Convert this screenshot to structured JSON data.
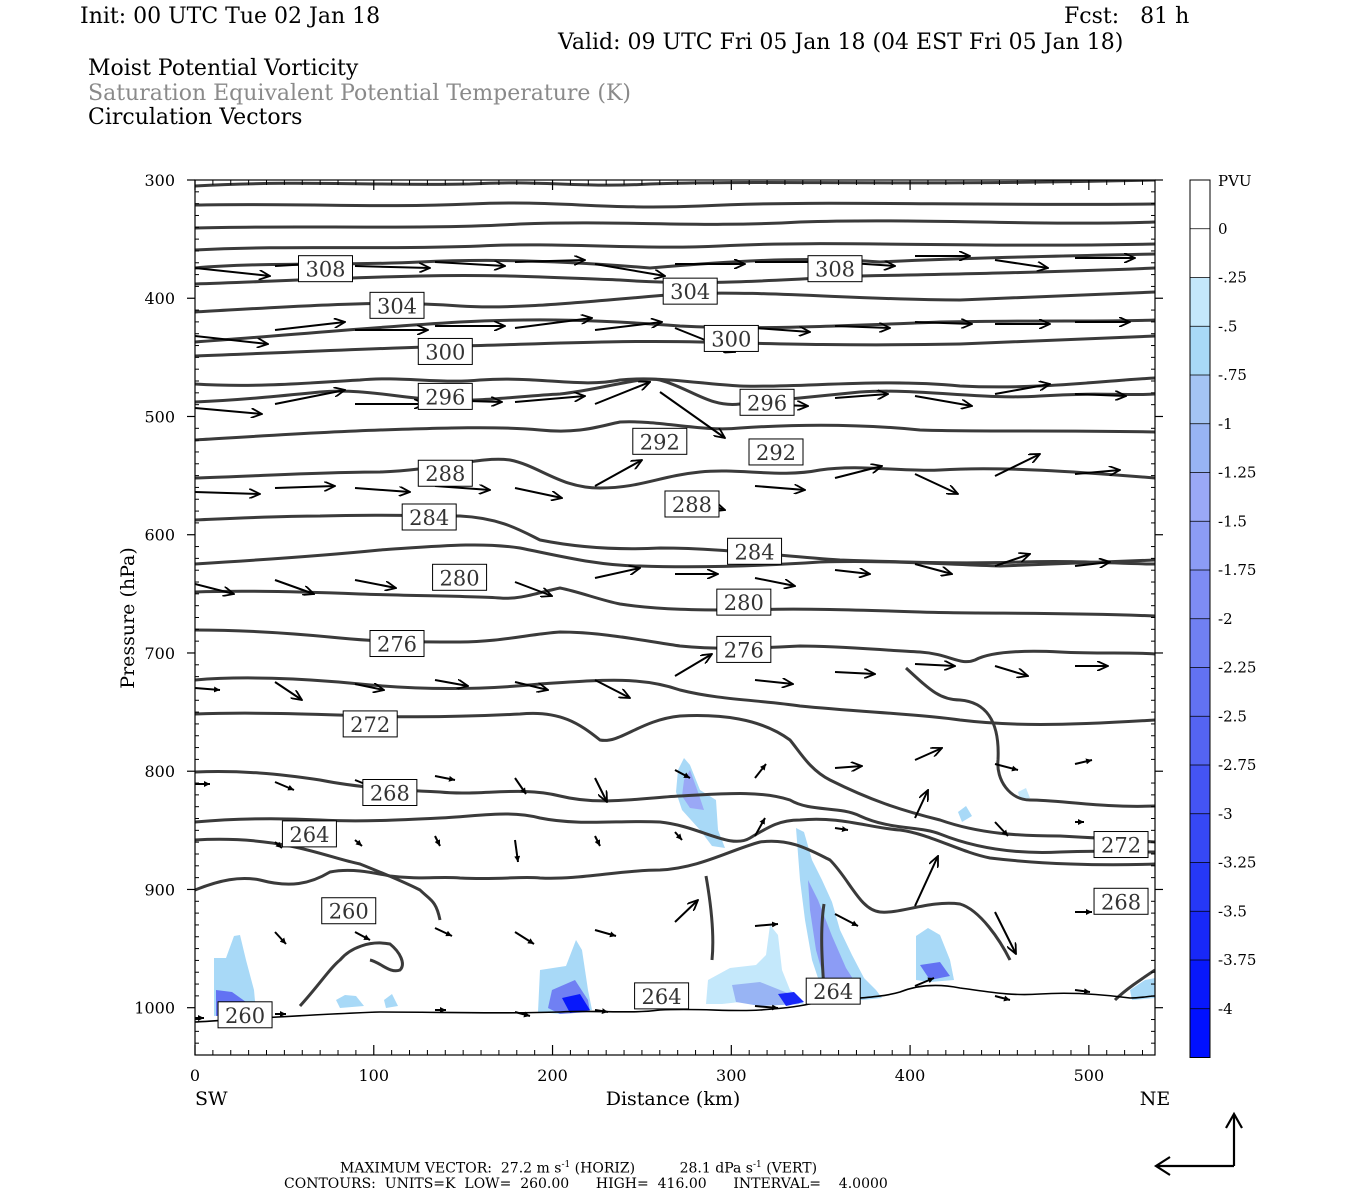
{
  "header": {
    "init": "Init: 00 UTC Tue 02 Jan 18",
    "fcst": "Fcst:   81 h",
    "valid": "Valid: 09 UTC Fri 05 Jan 18 (04 EST Fri 05 Jan 18)",
    "field1": "Moist Potential Vorticity",
    "field2": "Saturation Equivalent Potential Temperature (K)",
    "field3": "Circulation Vectors"
  },
  "footer": {
    "max_vector_label": "MAXIMUM VECTOR:",
    "max_horiz": "27.2 m s",
    "horiz_exp": "-1",
    "horiz_tag": "(HORIZ)",
    "max_vert": "28.1 dPa s",
    "vert_exp": "-1",
    "vert_tag": "(VERT)",
    "contours": "CONTOURS:  UNITS=K  LOW=  260.00      HIGH=  416.00      INTERVAL=    4.0000"
  },
  "chart_data": {
    "type": "cross-section",
    "xlabel": "Distance (km)",
    "ylabel": "Pressure (hPa)",
    "x_ticks": [
      0,
      100,
      200,
      300,
      400,
      500
    ],
    "x_range": [
      0,
      537
    ],
    "x_end_labels": {
      "left": "SW",
      "right": "NE"
    },
    "y_ticks": [
      300,
      400,
      500,
      600,
      700,
      800,
      900,
      1000
    ],
    "y_range": [
      300,
      1040
    ],
    "contour_labels": [
      {
        "text": "308",
        "x": 73,
        "p": 375
      },
      {
        "text": "304",
        "x": 113,
        "p": 406
      },
      {
        "text": "300",
        "x": 140,
        "p": 445
      },
      {
        "text": "296",
        "x": 140,
        "p": 483
      },
      {
        "text": "288",
        "x": 140,
        "p": 548
      },
      {
        "text": "284",
        "x": 131,
        "p": 585
      },
      {
        "text": "280",
        "x": 148,
        "p": 636
      },
      {
        "text": "276",
        "x": 113,
        "p": 692
      },
      {
        "text": "272",
        "x": 98,
        "p": 760
      },
      {
        "text": "268",
        "x": 109,
        "p": 818
      },
      {
        "text": "264",
        "x": 64,
        "p": 853
      },
      {
        "text": "260",
        "x": 86,
        "p": 918
      },
      {
        "text": "260",
        "x": 28,
        "p": 1006
      },
      {
        "text": "304",
        "x": 277,
        "p": 394
      },
      {
        "text": "300",
        "x": 300,
        "p": 434
      },
      {
        "text": "308",
        "x": 358,
        "p": 375
      },
      {
        "text": "296",
        "x": 320,
        "p": 488
      },
      {
        "text": "292",
        "x": 260,
        "p": 521
      },
      {
        "text": "292",
        "x": 325,
        "p": 530
      },
      {
        "text": "288",
        "x": 278,
        "p": 574
      },
      {
        "text": "284",
        "x": 313,
        "p": 614
      },
      {
        "text": "280",
        "x": 307,
        "p": 657
      },
      {
        "text": "276",
        "x": 307,
        "p": 697
      },
      {
        "text": "264",
        "x": 261,
        "p": 990
      },
      {
        "text": "264",
        "x": 357,
        "p": 986
      },
      {
        "text": "272",
        "x": 518,
        "p": 862
      },
      {
        "text": "268",
        "x": 518,
        "p": 910
      }
    ],
    "colorbar": {
      "unit": "PVU",
      "labels": [
        "0",
        "-.25",
        "-.5",
        "-.75",
        "-1",
        "-1.25",
        "-1.5",
        "-1.75",
        "-2",
        "-2.25",
        "-2.5",
        "-2.75",
        "-3",
        "-3.25",
        "-3.5",
        "-3.75",
        "-4"
      ],
      "colors": [
        "#ffffff",
        "#ffffff",
        "#c4e8fb",
        "#a8d9f7",
        "#a4c4f4",
        "#98b4f4",
        "#9aa8f6",
        "#8c9cf5",
        "#7e8cf4",
        "#7080f3",
        "#6272f3",
        "#5464f3",
        "#4454f4",
        "#3648f5",
        "#2638f7",
        "#1828f8",
        "#0818fb",
        "#0010ff"
      ]
    },
    "annotations": [
      "MAXIMUM VECTOR: 27.2 m s-1 (HORIZ)  28.1 dPa s-1 (VERT)",
      "CONTOURS: UNITS=K LOW= 260.00 HIGH= 416.00 INTERVAL= 4.0000"
    ]
  }
}
